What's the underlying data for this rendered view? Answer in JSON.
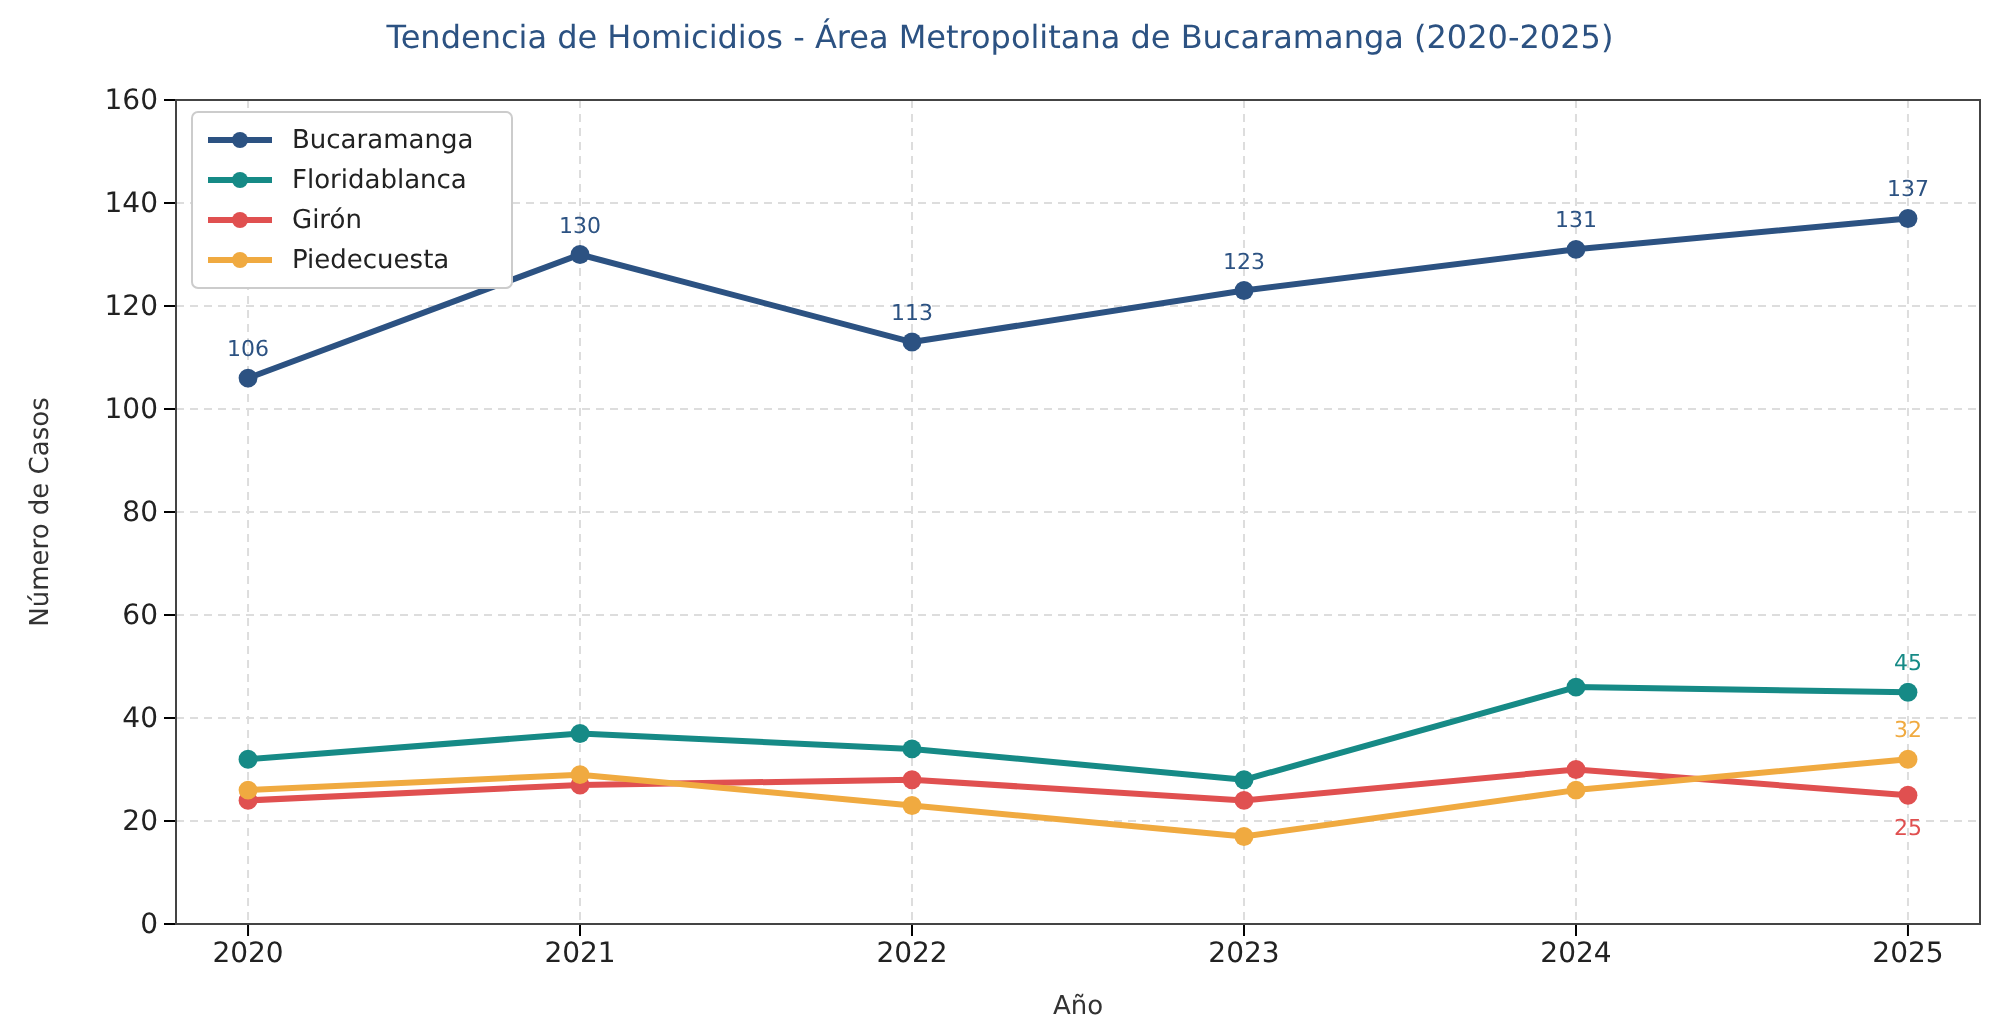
{
  "chart_data": {
    "type": "line",
    "title": "Tendencia de Homicidios - Área Metropolitana de Bucaramanga (2020-2025)",
    "xlabel": "Año",
    "ylabel": "Número de Casos",
    "categories": [
      "2020",
      "2021",
      "2022",
      "2023",
      "2024",
      "2025"
    ],
    "series": [
      {
        "name": "Bucaramanga",
        "color": "#2c5282",
        "values": [
          106,
          130,
          113,
          123,
          131,
          137
        ],
        "value_labels": [
          "106",
          "130",
          "113",
          "123",
          "131",
          "137"
        ]
      },
      {
        "name": "Floridablanca",
        "color": "#168a86",
        "values": [
          32,
          37,
          34,
          28,
          46,
          45
        ],
        "value_labels": [
          null,
          null,
          null,
          null,
          null,
          "45"
        ]
      },
      {
        "name": "Girón",
        "color": "#e05050",
        "values": [
          24,
          27,
          28,
          24,
          30,
          25
        ],
        "value_labels": [
          null,
          null,
          null,
          null,
          null,
          "25"
        ]
      },
      {
        "name": "Piedecuesta",
        "color": "#f0aa40",
        "values": [
          26,
          29,
          23,
          17,
          26,
          32
        ],
        "value_labels": [
          null,
          null,
          null,
          null,
          null,
          "32"
        ]
      }
    ],
    "ylim": [
      0,
      160
    ],
    "yticks": [
      0,
      20,
      40,
      60,
      80,
      100,
      120,
      140,
      160
    ],
    "grid": true,
    "legend": "top left",
    "marker": "circle",
    "line_style": "solid"
  }
}
